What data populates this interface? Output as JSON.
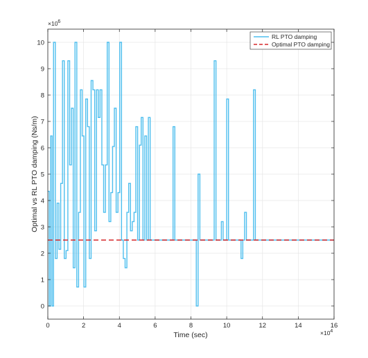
{
  "chart_data": {
    "type": "line",
    "xlabel": "Time (sec)",
    "ylabel": "Optimal vs RL PTO damping (Ns/m)",
    "x_exponent_label": "×10",
    "x_exponent_power": "4",
    "y_exponent_label": "×10",
    "y_exponent_power": "6",
    "xlim": [
      0,
      16
    ],
    "ylim": [
      -0.5,
      10.5
    ],
    "x_ticks": [
      "0",
      "2",
      "4",
      "6",
      "8",
      "10",
      "12",
      "14",
      "16"
    ],
    "y_ticks": [
      "0",
      "1",
      "2",
      "3",
      "4",
      "5",
      "6",
      "7",
      "8",
      "9",
      "10"
    ],
    "x_tick_values": [
      0,
      2,
      4,
      6,
      8,
      10,
      12,
      14,
      16
    ],
    "y_tick_values": [
      0,
      1,
      2,
      3,
      4,
      5,
      6,
      7,
      8,
      9,
      10
    ],
    "grid": true,
    "legend_position": "top-right",
    "series": [
      {
        "name": "RL PTO damping",
        "color": "#4DBEEE",
        "style": "step",
        "x": [
          0,
          0.08,
          0.16,
          0.24,
          0.32,
          0.42,
          0.52,
          0.62,
          0.72,
          0.82,
          0.92,
          1.02,
          1.12,
          1.22,
          1.32,
          1.42,
          1.52,
          1.62,
          1.72,
          1.82,
          1.92,
          2.02,
          2.12,
          2.22,
          2.32,
          2.42,
          2.52,
          2.62,
          2.72,
          2.82,
          2.92,
          3.02,
          3.12,
          3.22,
          3.32,
          3.42,
          3.52,
          3.62,
          3.72,
          3.82,
          3.92,
          4.02,
          4.12,
          4.22,
          4.32,
          4.42,
          4.52,
          4.62,
          4.72,
          4.82,
          4.92,
          5.02,
          5.12,
          5.22,
          5.32,
          5.42,
          5.52,
          5.62,
          5.72,
          5.82,
          5.92,
          6.02,
          6.12,
          6.22,
          6.32,
          6.5,
          7.0,
          7.1,
          8.3,
          8.4,
          8.5,
          9.3,
          9.4,
          9.7,
          9.8,
          10.0,
          10.1,
          10.8,
          10.9,
          11.0,
          11.1,
          11.5,
          11.6,
          16.0
        ],
        "y": [
          4.35,
          0.0,
          6.45,
          0.0,
          10.0,
          1.8,
          3.9,
          2.15,
          4.65,
          9.3,
          1.8,
          2.1,
          9.3,
          5.35,
          7.5,
          1.45,
          10.0,
          0.72,
          3.55,
          8.2,
          6.45,
          0.72,
          7.85,
          6.8,
          1.8,
          8.55,
          8.2,
          2.85,
          8.2,
          7.15,
          8.2,
          5.35,
          3.55,
          5.35,
          10.0,
          3.2,
          4.3,
          6.05,
          7.5,
          3.55,
          4.3,
          10.0,
          2.5,
          1.8,
          1.45,
          3.55,
          4.65,
          2.85,
          3.2,
          3.55,
          6.8,
          2.5,
          6.1,
          7.15,
          2.5,
          6.45,
          2.5,
          7.15,
          2.5,
          2.5,
          2.5,
          2.5,
          2.5,
          2.5,
          2.5,
          2.5,
          6.8,
          2.5,
          0.0,
          5.0,
          2.5,
          9.3,
          2.5,
          3.2,
          2.5,
          7.85,
          2.5,
          1.8,
          2.5,
          3.55,
          2.5,
          8.2,
          2.5,
          2.5
        ]
      },
      {
        "name": "Optimal PTO damping",
        "color": "#D62728",
        "style": "dashed",
        "x": [
          0,
          16
        ],
        "y": [
          2.5,
          2.5
        ]
      }
    ]
  }
}
